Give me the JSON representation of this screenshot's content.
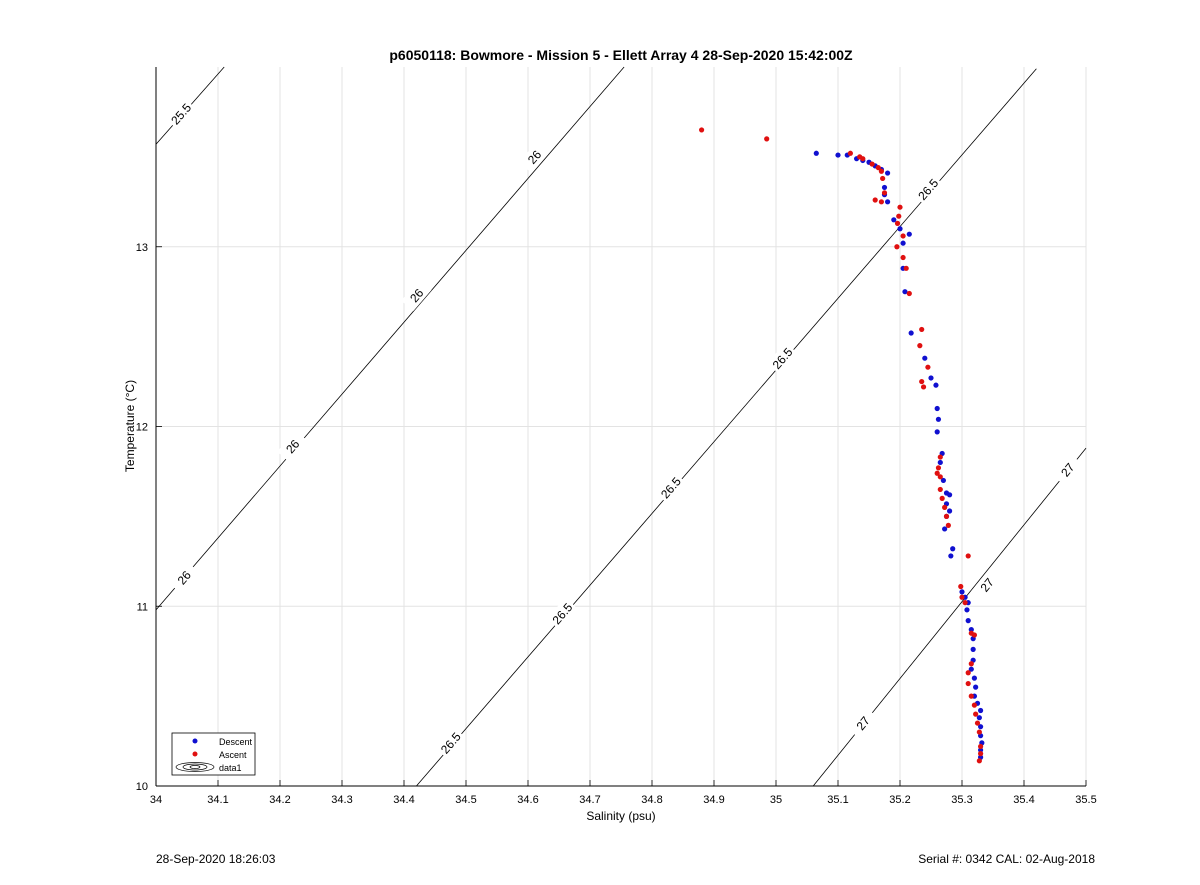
{
  "chart_data": {
    "type": "scatter",
    "title": "p6050118: Bowmore - Mission 5 - Ellett Array 4 28-Sep-2020 15:42:00Z",
    "xlabel": "Salinity (psu)",
    "ylabel": "Temperature (°C)",
    "xlim": [
      34,
      35.5
    ],
    "ylim": [
      10,
      14
    ],
    "xticks": [
      "34",
      "34.1",
      "34.2",
      "34.3",
      "34.4",
      "34.5",
      "34.6",
      "34.7",
      "34.8",
      "34.9",
      "35",
      "35.1",
      "35.2",
      "35.3",
      "35.4",
      "35.5"
    ],
    "yticks": [
      "10",
      "11",
      "12",
      "13"
    ],
    "grid": true,
    "legend_position": "bottom-left",
    "legend": [
      "Descent",
      "Ascent",
      "data1"
    ],
    "colors": {
      "descent": "#1010d0",
      "ascent": "#e01010"
    },
    "contours": [
      {
        "label": "25.5",
        "line": [
          [
            34.0,
            13.57
          ],
          [
            34.11,
            14.0
          ]
        ],
        "labels_at": [
          [
            34.04,
            13.74
          ]
        ]
      },
      {
        "label": "26",
        "line": [
          [
            34.0,
            10.98
          ],
          [
            34.755,
            14.0
          ]
        ],
        "labels_at": [
          [
            34.045,
            11.16
          ],
          [
            34.22,
            11.89
          ],
          [
            34.42,
            12.73
          ],
          [
            34.61,
            13.5
          ]
        ]
      },
      {
        "label": "26.5",
        "line": [
          [
            34.42,
            10.0
          ],
          [
            35.42,
            13.99
          ]
        ],
        "labels_at": [
          [
            34.475,
            10.24
          ],
          [
            34.655,
            10.96
          ],
          [
            34.83,
            11.66
          ],
          [
            35.01,
            12.38
          ],
          [
            35.245,
            13.32
          ]
        ]
      },
      {
        "label": "27",
        "line": [
          [
            35.06,
            10.0
          ],
          [
            35.5,
            11.88
          ]
        ],
        "labels_at": [
          [
            35.14,
            10.35
          ],
          [
            35.34,
            11.12
          ],
          [
            35.47,
            11.76
          ]
        ]
      }
    ],
    "series": [
      {
        "name": "Descent",
        "points": [
          [
            35.065,
            13.52
          ],
          [
            35.1,
            13.51
          ],
          [
            35.115,
            13.51
          ],
          [
            35.13,
            13.49
          ],
          [
            35.14,
            13.48
          ],
          [
            35.15,
            13.47
          ],
          [
            35.16,
            13.45
          ],
          [
            35.17,
            13.43
          ],
          [
            35.18,
            13.41
          ],
          [
            35.175,
            13.33
          ],
          [
            35.175,
            13.29
          ],
          [
            35.18,
            13.25
          ],
          [
            35.19,
            13.15
          ],
          [
            35.2,
            13.1
          ],
          [
            35.215,
            13.07
          ],
          [
            35.205,
            13.02
          ],
          [
            35.205,
            12.88
          ],
          [
            35.208,
            12.75
          ],
          [
            35.218,
            12.52
          ],
          [
            35.24,
            12.38
          ],
          [
            35.25,
            12.27
          ],
          [
            35.258,
            12.23
          ],
          [
            35.26,
            12.1
          ],
          [
            35.262,
            12.04
          ],
          [
            35.26,
            11.97
          ],
          [
            35.268,
            11.85
          ],
          [
            35.265,
            11.8
          ],
          [
            35.27,
            11.7
          ],
          [
            35.275,
            11.63
          ],
          [
            35.28,
            11.62
          ],
          [
            35.275,
            11.57
          ],
          [
            35.28,
            11.53
          ],
          [
            35.275,
            11.5
          ],
          [
            35.272,
            11.43
          ],
          [
            35.285,
            11.32
          ],
          [
            35.282,
            11.28
          ],
          [
            35.3,
            11.08
          ],
          [
            35.305,
            11.05
          ],
          [
            35.31,
            11.02
          ],
          [
            35.308,
            10.98
          ],
          [
            35.31,
            10.92
          ],
          [
            35.315,
            10.87
          ],
          [
            35.318,
            10.82
          ],
          [
            35.318,
            10.76
          ],
          [
            35.318,
            10.7
          ],
          [
            35.315,
            10.65
          ],
          [
            35.32,
            10.6
          ],
          [
            35.322,
            10.55
          ],
          [
            35.32,
            10.5
          ],
          [
            35.325,
            10.46
          ],
          [
            35.33,
            10.42
          ],
          [
            35.328,
            10.38
          ],
          [
            35.33,
            10.33
          ],
          [
            35.33,
            10.28
          ],
          [
            35.332,
            10.24
          ],
          [
            35.33,
            10.2
          ],
          [
            35.33,
            10.16
          ]
        ]
      },
      {
        "name": "Ascent",
        "points": [
          [
            34.88,
            13.65
          ],
          [
            34.985,
            13.6
          ],
          [
            35.12,
            13.52
          ],
          [
            35.135,
            13.5
          ],
          [
            35.14,
            13.49
          ],
          [
            35.155,
            13.46
          ],
          [
            35.165,
            13.44
          ],
          [
            35.17,
            13.42
          ],
          [
            35.172,
            13.38
          ],
          [
            35.175,
            13.3
          ],
          [
            35.17,
            13.25
          ],
          [
            35.16,
            13.26
          ],
          [
            35.2,
            13.22
          ],
          [
            35.198,
            13.17
          ],
          [
            35.196,
            13.13
          ],
          [
            35.205,
            13.06
          ],
          [
            35.195,
            13.0
          ],
          [
            35.205,
            12.94
          ],
          [
            35.21,
            12.88
          ],
          [
            35.215,
            12.74
          ],
          [
            35.235,
            12.54
          ],
          [
            35.232,
            12.45
          ],
          [
            35.245,
            12.33
          ],
          [
            35.235,
            12.25
          ],
          [
            35.238,
            12.22
          ],
          [
            35.265,
            11.83
          ],
          [
            35.262,
            11.77
          ],
          [
            35.26,
            11.74
          ],
          [
            35.265,
            11.72
          ],
          [
            35.265,
            11.65
          ],
          [
            35.268,
            11.6
          ],
          [
            35.272,
            11.55
          ],
          [
            35.275,
            11.5
          ],
          [
            35.278,
            11.45
          ],
          [
            35.31,
            11.28
          ],
          [
            35.298,
            11.11
          ],
          [
            35.3,
            11.05
          ],
          [
            35.305,
            11.02
          ],
          [
            35.315,
            10.85
          ],
          [
            35.32,
            10.84
          ],
          [
            35.315,
            10.68
          ],
          [
            35.31,
            10.63
          ],
          [
            35.31,
            10.57
          ],
          [
            35.315,
            10.5
          ],
          [
            35.32,
            10.45
          ],
          [
            35.322,
            10.4
          ],
          [
            35.325,
            10.35
          ],
          [
            35.328,
            10.3
          ],
          [
            35.33,
            10.22
          ],
          [
            35.33,
            10.18
          ],
          [
            35.328,
            10.14
          ]
        ]
      }
    ]
  },
  "footer": {
    "left": "28-Sep-2020 18:26:03",
    "right": "Serial #: 0342  CAL: 02-Aug-2018"
  }
}
